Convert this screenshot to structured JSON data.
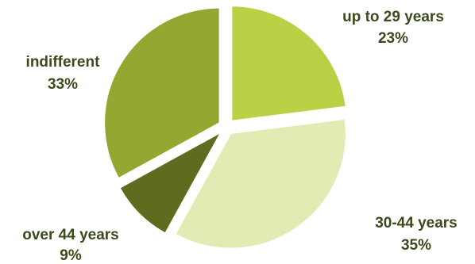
{
  "chart_data": {
    "type": "pie",
    "title": "",
    "slices": [
      {
        "label": "up to 29 years",
        "percent_label": "23%",
        "value": 23,
        "color": "#bcd045"
      },
      {
        "label": "30-44 years",
        "percent_label": "35%",
        "value": 35,
        "color": "#e1ebb3"
      },
      {
        "label": "over 44 years",
        "percent_label": "9%",
        "value": 9,
        "color": "#5f6b1e"
      },
      {
        "label": "indifferent",
        "percent_label": "33%",
        "value": 33,
        "color": "#94a731"
      }
    ],
    "start_angle_deg": 0,
    "direction": "clockwise",
    "exploded": true,
    "legend": "none",
    "data_labels": "outside"
  }
}
